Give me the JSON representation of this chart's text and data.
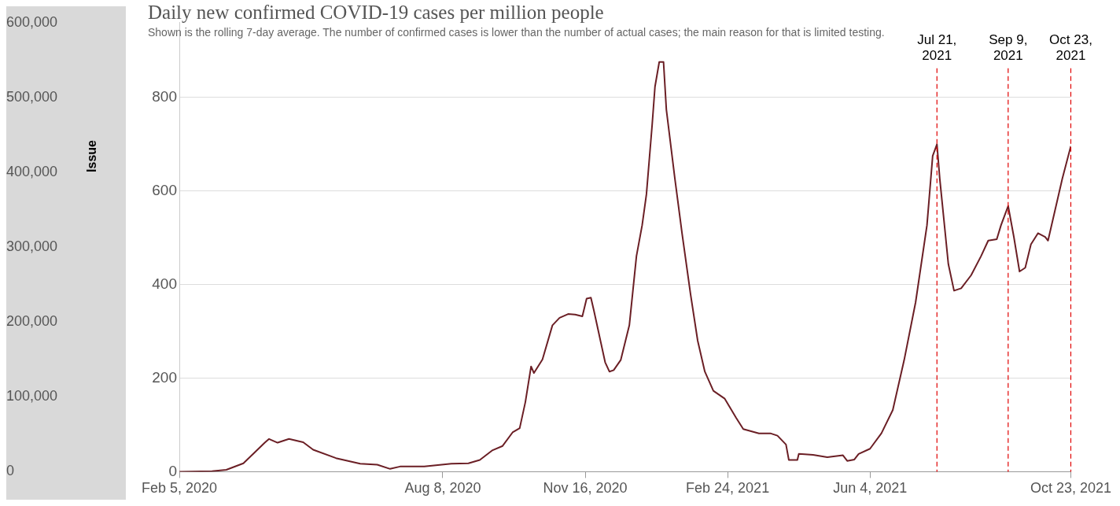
{
  "chart_data": {
    "type": "line",
    "title": "Daily new confirmed COVID-19 cases per million people",
    "subtitle": "Shown is the rolling 7-day average. The number of confirmed cases is lower than the number of actual cases; the main reason for that is limited testing.",
    "y2label": "Issue",
    "xlim": [
      "2020-02-05",
      "2021-10-23"
    ],
    "xticks": [
      {
        "value": "2020-02-05",
        "label": "Feb 5, 2020"
      },
      {
        "value": "2020-08-08",
        "label": "Aug 8, 2020"
      },
      {
        "value": "2020-11-16",
        "label": "Nov 16, 2020"
      },
      {
        "value": "2021-02-24",
        "label": "Feb 24, 2021"
      },
      {
        "value": "2021-06-04",
        "label": "Jun 4, 2021"
      },
      {
        "value": "2021-10-23",
        "label": "Oct 23, 2021"
      }
    ],
    "ylim": [
      0,
      960
    ],
    "yticks": [
      0,
      200,
      400,
      600,
      800
    ],
    "y2lim": [
      0,
      600000
    ],
    "y2ticks": [
      {
        "value": 0,
        "label": "0"
      },
      {
        "value": 100000,
        "label": "100,000"
      },
      {
        "value": 200000,
        "label": "200,000"
      },
      {
        "value": 300000,
        "label": "300,000"
      },
      {
        "value": 400000,
        "label": "400,000"
      },
      {
        "value": 500000,
        "label": "500,000"
      },
      {
        "value": 600000,
        "label": "600,000"
      }
    ],
    "grid": "y",
    "legend": false,
    "marker": "none",
    "line_style": "solid",
    "series": [
      {
        "color": "#6b1f25",
        "x": [
          "2020-02-05",
          "2020-02-28",
          "2020-03-09",
          "2020-03-21",
          "2020-04-05",
          "2020-04-08",
          "2020-04-14",
          "2020-04-22",
          "2020-05-02",
          "2020-05-09",
          "2020-05-25",
          "2020-06-11",
          "2020-06-23",
          "2020-07-02",
          "2020-07-09",
          "2020-07-26",
          "2020-08-14",
          "2020-08-26",
          "2020-09-03",
          "2020-09-12",
          "2020-09-19",
          "2020-09-26",
          "2020-10-01",
          "2020-10-05",
          "2020-10-09",
          "2020-10-11",
          "2020-10-17",
          "2020-10-24",
          "2020-10-29",
          "2020-11-04",
          "2020-11-09",
          "2020-11-14",
          "2020-11-17",
          "2020-11-20",
          "2020-11-22",
          "2020-11-30",
          "2020-12-03",
          "2020-12-06",
          "2020-12-11",
          "2020-12-17",
          "2020-12-22",
          "2020-12-26",
          "2020-12-29",
          "2021-01-02",
          "2021-01-04",
          "2021-01-07",
          "2021-01-10",
          "2021-01-12",
          "2021-01-18",
          "2021-01-23",
          "2021-01-29",
          "2021-02-03",
          "2021-02-08",
          "2021-02-14",
          "2021-02-22",
          "2021-03-02",
          "2021-03-07",
          "2021-03-18",
          "2021-03-26",
          "2021-03-31",
          "2021-04-06",
          "2021-04-08",
          "2021-04-14",
          "2021-04-15",
          "2021-04-25",
          "2021-05-05",
          "2021-05-16",
          "2021-05-19",
          "2021-05-24",
          "2021-05-27",
          "2021-06-04",
          "2021-06-12",
          "2021-06-20",
          "2021-06-28",
          "2021-07-06",
          "2021-07-14",
          "2021-07-18",
          "2021-07-21",
          "2021-07-23",
          "2021-07-29",
          "2021-08-02",
          "2021-08-07",
          "2021-08-14",
          "2021-08-21",
          "2021-08-26",
          "2021-09-01",
          "2021-09-04",
          "2021-09-09",
          "2021-09-13",
          "2021-09-17",
          "2021-09-21",
          "2021-09-25",
          "2021-09-30",
          "2021-10-05",
          "2021-10-07",
          "2021-10-12",
          "2021-10-17",
          "2021-10-23"
        ],
        "values": [
          0,
          1,
          4,
          18,
          62,
          70,
          62,
          70,
          63,
          47,
          29,
          17,
          15,
          6,
          11,
          11,
          17,
          18,
          25,
          46,
          55,
          84,
          93,
          149,
          225,
          211,
          240,
          313,
          329,
          337,
          336,
          332,
          370,
          372,
          346,
          234,
          214,
          217,
          239,
          313,
          461,
          527,
          593,
          741,
          823,
          876,
          876,
          774,
          626,
          510,
          379,
          280,
          214,
          173,
          156,
          115,
          91,
          82,
          82,
          77,
          58,
          25,
          25,
          38,
          36,
          31,
          35,
          23,
          26,
          38,
          49,
          82,
          132,
          239,
          362,
          527,
          675,
          700,
          626,
          444,
          387,
          392,
          420,
          461,
          494,
          497,
          527,
          568,
          502,
          428,
          436,
          486,
          510,
          502,
          494,
          560,
          626,
          696
        ]
      }
    ],
    "ref_lines": [
      {
        "axis": "x",
        "value": "2021-07-21",
        "label": "Jul 21, 2021",
        "color": "#e00000",
        "line_style": "dashed"
      },
      {
        "axis": "x",
        "value": "2021-09-09",
        "label": "Sep 9, 2021",
        "color": "#e00000",
        "line_style": "dashed"
      },
      {
        "axis": "x",
        "value": "2021-10-23",
        "label": "Oct 23, 2021",
        "color": "#e00000",
        "line_style": "dashed"
      }
    ]
  }
}
